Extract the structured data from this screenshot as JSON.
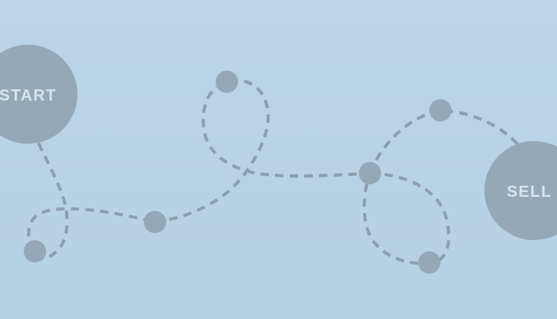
{
  "diagram": {
    "start_label": "START",
    "end_label": "SELL",
    "colors": {
      "background": "#b9d3e6",
      "line": "#8d9fad",
      "node": "#94a8b8",
      "label_text": "#d6e4ee"
    }
  }
}
